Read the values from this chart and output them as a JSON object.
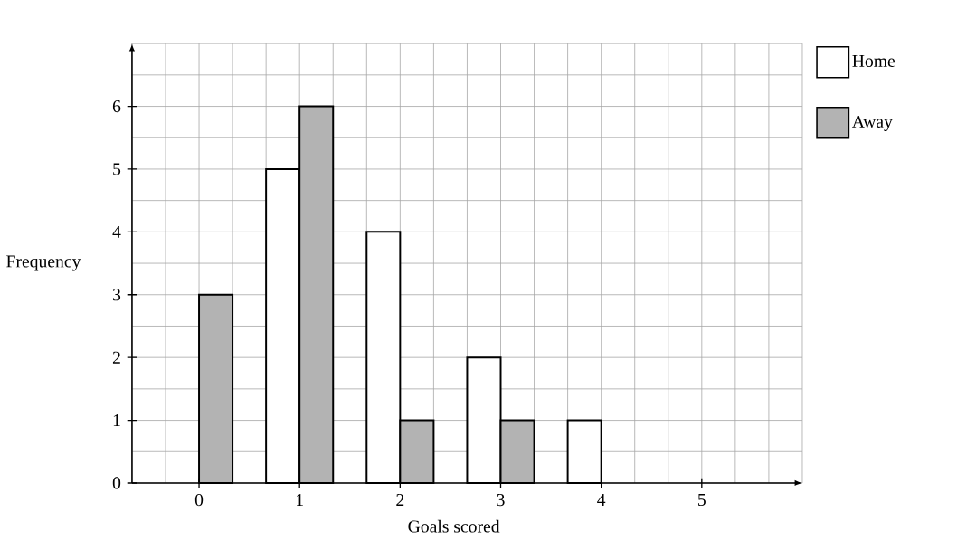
{
  "chart_data": {
    "type": "bar",
    "xlabel": "Goals scored",
    "ylabel": "Frequency",
    "categories": [
      "0",
      "1",
      "2",
      "3",
      "4",
      "5"
    ],
    "series": [
      {
        "name": "Home",
        "color": "#ffffff",
        "values": [
          null,
          5,
          4,
          2,
          1,
          null
        ]
      },
      {
        "name": "Away",
        "color": "#b3b3b3",
        "values": [
          3,
          6,
          1,
          1,
          null,
          null
        ]
      }
    ],
    "ylim": [
      0,
      7
    ],
    "yticks": [
      0,
      1,
      2,
      3,
      4,
      5,
      6
    ],
    "grid": true,
    "legend": "top right"
  }
}
